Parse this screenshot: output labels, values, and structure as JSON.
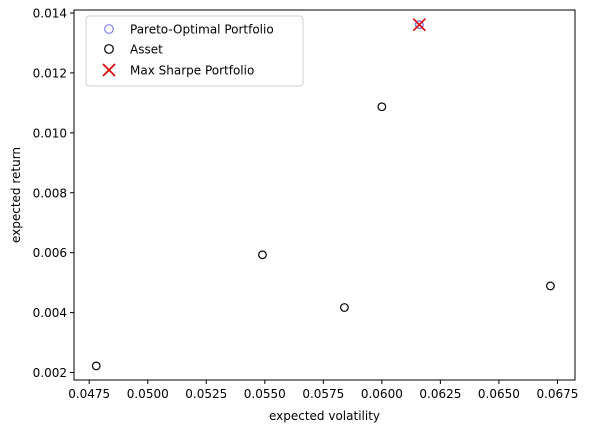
{
  "chart_data": {
    "type": "scatter",
    "xlabel": "expected volatility",
    "ylabel": "expected return",
    "xlim": [
      0.04685,
      0.06825
    ],
    "ylim": [
      0.00175,
      0.0141
    ],
    "xticks": [
      0.0475,
      0.05,
      0.0525,
      0.055,
      0.0575,
      0.06,
      0.0625,
      0.065,
      0.0675
    ],
    "xtick_labels": [
      "0.0475",
      "0.0500",
      "0.0525",
      "0.0550",
      "0.0575",
      "0.0600",
      "0.0625",
      "0.0650",
      "0.0675"
    ],
    "yticks": [
      0.002,
      0.004,
      0.006,
      0.008,
      0.01,
      0.012,
      0.014
    ],
    "ytick_labels": [
      "0.002",
      "0.004",
      "0.006",
      "0.008",
      "0.010",
      "0.012",
      "0.014"
    ],
    "grid": false,
    "legend_position": "top-left",
    "series": [
      {
        "name": "Pareto-Optimal Portfolio",
        "marker": "circle",
        "color": "#8080ff",
        "points": [
          {
            "x": 0.0616,
            "y": 0.01361
          }
        ]
      },
      {
        "name": "Asset",
        "marker": "circle",
        "color": "#000000",
        "points": [
          {
            "x": 0.0478,
            "y": 0.00222
          },
          {
            "x": 0.0549,
            "y": 0.00593
          },
          {
            "x": 0.0584,
            "y": 0.00417
          },
          {
            "x": 0.06,
            "y": 0.01087
          },
          {
            "x": 0.0616,
            "y": 0.01361
          },
          {
            "x": 0.0672,
            "y": 0.00489
          }
        ]
      },
      {
        "name": "Max Sharpe Portfolio",
        "marker": "x",
        "color": "#dd0000",
        "points": [
          {
            "x": 0.0616,
            "y": 0.01361
          }
        ]
      }
    ]
  }
}
